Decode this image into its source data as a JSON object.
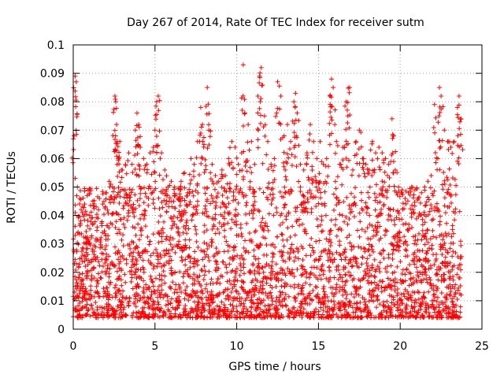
{
  "chart_data": {
    "type": "scatter",
    "title": "Day 267 of 2014, Rate Of TEC Index for receiver sutm",
    "xlabel": "GPS time / hours",
    "ylabel": "ROTI / TECUs",
    "xlim": [
      0,
      25
    ],
    "ylim": [
      0,
      0.1
    ],
    "x_ticks": [
      0,
      5,
      10,
      15,
      20,
      25
    ],
    "x_tick_labels": [
      "0",
      "5",
      "10",
      "15",
      "20",
      "25"
    ],
    "y_ticks": [
      0,
      0.01,
      0.02,
      0.03,
      0.04,
      0.05,
      0.06,
      0.07,
      0.08,
      0.09,
      0.1
    ],
    "y_tick_labels": [
      "0",
      "0.01",
      "0.02",
      "0.03",
      "0.04",
      "0.05",
      "0.06",
      "0.07",
      "0.08",
      "0.09",
      "0.1"
    ],
    "grid": true,
    "marker": "+",
    "color": "#ff0000",
    "series": [
      {
        "name": "ROTI",
        "x": [
          0.05,
          0.12,
          0.18,
          0.25,
          0.4,
          0.55,
          0.7,
          0.85,
          1.0,
          1.2,
          1.4,
          1.6,
          1.8,
          2.0,
          2.2,
          2.4,
          2.55,
          2.6,
          2.65,
          2.7,
          2.8,
          2.85,
          3.0,
          3.2,
          3.4,
          3.6,
          3.8,
          3.9,
          4.0,
          4.1,
          4.3,
          4.5,
          4.7,
          4.9,
          5.0,
          5.1,
          5.2,
          5.4,
          5.6,
          5.8,
          6.0,
          6.2,
          6.4,
          6.6,
          6.8,
          7.0,
          7.2,
          7.4,
          7.6,
          7.8,
          7.9,
          8.0,
          8.2,
          8.3,
          8.5,
          8.7,
          8.9,
          9.1,
          9.3,
          9.5,
          9.7,
          9.9,
          10.1,
          10.3,
          10.4,
          10.5,
          10.7,
          10.9,
          11.1,
          11.3,
          11.4,
          11.5,
          11.7,
          11.9,
          12.1,
          12.3,
          12.5,
          12.7,
          12.9,
          13.1,
          13.3,
          13.5,
          13.6,
          13.7,
          13.9,
          14.1,
          14.3,
          14.5,
          14.7,
          14.9,
          15.1,
          15.3,
          15.5,
          15.7,
          15.8,
          15.9,
          16.1,
          16.3,
          16.5,
          16.7,
          16.8,
          16.9,
          17.1,
          17.3,
          17.5,
          17.7,
          17.9,
          18.1,
          18.3,
          18.5,
          18.7,
          18.9,
          19.1,
          19.3,
          19.5,
          19.6,
          19.7,
          19.9,
          20.1,
          20.3,
          20.5,
          20.7,
          20.9,
          21.1,
          21.3,
          21.5,
          21.7,
          21.9,
          22.1,
          22.3,
          22.4,
          22.5,
          22.7,
          22.9,
          23.1,
          23.3,
          23.5,
          23.6,
          23.7
        ],
        "y": [
          0.068,
          0.089,
          0.087,
          0.05,
          0.046,
          0.041,
          0.044,
          0.047,
          0.04,
          0.045,
          0.043,
          0.046,
          0.044,
          0.048,
          0.052,
          0.05,
          0.082,
          0.08,
          0.072,
          0.066,
          0.06,
          0.066,
          0.056,
          0.058,
          0.062,
          0.058,
          0.07,
          0.076,
          0.072,
          0.064,
          0.06,
          0.058,
          0.062,
          0.064,
          0.07,
          0.08,
          0.082,
          0.062,
          0.056,
          0.05,
          0.052,
          0.05,
          0.046,
          0.052,
          0.055,
          0.048,
          0.06,
          0.058,
          0.066,
          0.078,
          0.072,
          0.065,
          0.085,
          0.07,
          0.058,
          0.054,
          0.052,
          0.056,
          0.054,
          0.06,
          0.066,
          0.064,
          0.058,
          0.062,
          0.093,
          0.076,
          0.072,
          0.066,
          0.058,
          0.082,
          0.089,
          0.092,
          0.075,
          0.066,
          0.058,
          0.06,
          0.087,
          0.082,
          0.068,
          0.072,
          0.066,
          0.08,
          0.083,
          0.076,
          0.058,
          0.056,
          0.062,
          0.072,
          0.066,
          0.06,
          0.066,
          0.058,
          0.06,
          0.082,
          0.088,
          0.085,
          0.066,
          0.058,
          0.064,
          0.08,
          0.075,
          0.085,
          0.056,
          0.066,
          0.07,
          0.06,
          0.058,
          0.056,
          0.066,
          0.062,
          0.064,
          0.062,
          0.06,
          0.058,
          0.074,
          0.068,
          0.056,
          0.05,
          0.048,
          0.046,
          0.048,
          0.05,
          0.049,
          0.046,
          0.048,
          0.05,
          0.052,
          0.054,
          0.079,
          0.06,
          0.085,
          0.082,
          0.07,
          0.066,
          0.064,
          0.066,
          0.078,
          0.082,
          0.074
        ],
        "baseline_range": [
          0.004,
          0.03
        ]
      }
    ]
  }
}
